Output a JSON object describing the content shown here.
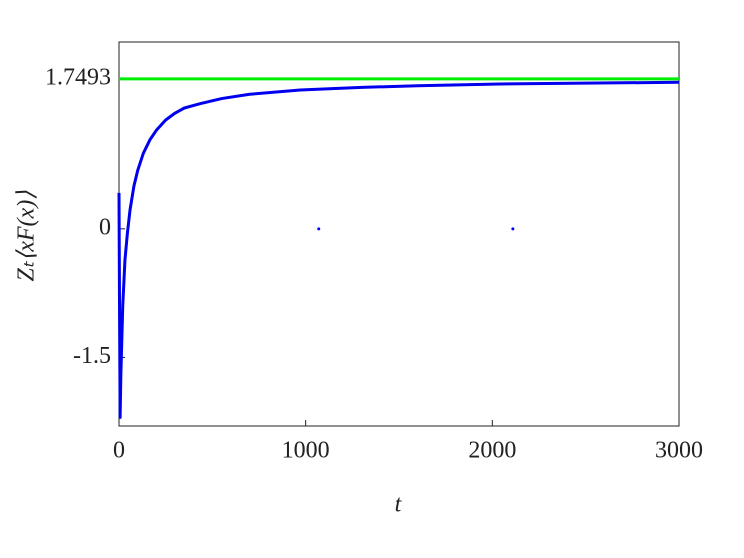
{
  "chart_data": {
    "type": "line",
    "x_label": "t",
    "y_label": "Zₜ⟨xF(x)⟩",
    "xlim": [
      0,
      3000
    ],
    "ylim": [
      -2.3,
      2.18
    ],
    "xticks": [
      0,
      1000,
      2000,
      3000
    ],
    "yticks": [
      -1.5,
      0,
      1.7493
    ],
    "series": [
      {
        "color": "#0000ee",
        "style": "line",
        "x": [
          0,
          3,
          6,
          10,
          20,
          32,
          45,
          59,
          80,
          100,
          130,
          166,
          200,
          250,
          300,
          350,
          434,
          550,
          700,
          970,
          1300,
          1600,
          2040,
          2500,
          3000
        ],
        "values": [
          0.42,
          -1.0,
          -2.2,
          -1.7,
          -0.9,
          -0.36,
          -0.05,
          0.22,
          0.5,
          0.68,
          0.88,
          1.04,
          1.15,
          1.27,
          1.35,
          1.41,
          1.46,
          1.52,
          1.57,
          1.62,
          1.65,
          1.67,
          1.69,
          1.7,
          1.71
        ]
      },
      {
        "color": "#0000ee",
        "style": "markers",
        "x": [
          1070,
          2110
        ],
        "values": [
          0,
          0
        ]
      },
      {
        "color": "#00ee00",
        "style": "line",
        "x": [
          0,
          3000
        ],
        "values": [
          1.7493,
          1.7493
        ]
      }
    ]
  }
}
